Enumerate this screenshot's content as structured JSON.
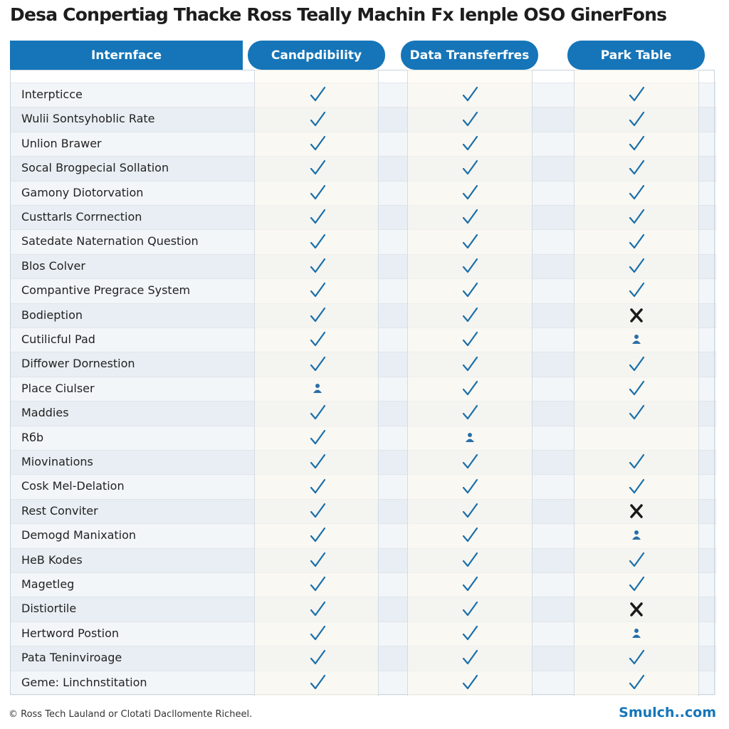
{
  "title": "Desa Conpertiag Thacke Ross Teally Machin Fx Ienple OSO GinerFons",
  "table": {
    "headers": [
      "Internface",
      "Candpdibility",
      "Data Transferfres",
      "Park Table"
    ],
    "rows": [
      {
        "label": "Interpticce",
        "cells": [
          "check",
          "check",
          "check"
        ]
      },
      {
        "label": "Wulii Sontsyhoblic Rate",
        "cells": [
          "check",
          "check",
          "check"
        ]
      },
      {
        "label": "Unlion Brawer",
        "cells": [
          "check",
          "check",
          "check"
        ]
      },
      {
        "label": "Socal Brogpecial Sollation",
        "cells": [
          "check",
          "check",
          "check"
        ]
      },
      {
        "label": "Gamony Diotorvation",
        "cells": [
          "check",
          "check",
          "check"
        ]
      },
      {
        "label": "Custtarls Corrnection",
        "cells": [
          "check",
          "check",
          "check"
        ]
      },
      {
        "label": "Satedate Naternation Question",
        "cells": [
          "check",
          "check",
          "check"
        ]
      },
      {
        "label": "Blos Colver",
        "cells": [
          "check",
          "check",
          "check"
        ]
      },
      {
        "label": "Compantive Pregrace System",
        "cells": [
          "check",
          "check",
          "check"
        ]
      },
      {
        "label": "Bodieption",
        "cells": [
          "check",
          "check",
          "cross"
        ]
      },
      {
        "label": "Cutilicful Pad",
        "cells": [
          "check",
          "check",
          "icon"
        ]
      },
      {
        "label": "Diffower Dornestion",
        "cells": [
          "check",
          "check",
          "check"
        ]
      },
      {
        "label": "Place Ciulser",
        "cells": [
          "icon",
          "check",
          "check"
        ]
      },
      {
        "label": "Maddies",
        "cells": [
          "check",
          "check",
          "check"
        ]
      },
      {
        "label": "Rбb",
        "cells": [
          "check",
          "icon",
          null
        ]
      },
      {
        "label": "Miovinations",
        "cells": [
          "check",
          "check",
          "check"
        ]
      },
      {
        "label": "Cosk Mel-Delation",
        "cells": [
          "check",
          "check",
          "check"
        ]
      },
      {
        "label": "Rest Conviter",
        "cells": [
          "check",
          "check",
          "cross"
        ]
      },
      {
        "label": "Demogd Manixation",
        "cells": [
          "check",
          "check",
          "icon"
        ]
      },
      {
        "label": "HeB Kodes",
        "cells": [
          "check",
          "check",
          "check"
        ]
      },
      {
        "label": "Magetleg",
        "cells": [
          "check",
          "check",
          "check"
        ]
      },
      {
        "label": "Distiortile",
        "cells": [
          "check",
          "check",
          "cross"
        ]
      },
      {
        "label": "Hertword Postion",
        "cells": [
          "check",
          "check",
          "icon"
        ]
      },
      {
        "label": "Pata Teninviroage",
        "cells": [
          "check",
          "check",
          "check"
        ]
      },
      {
        "label": "Geme: Linchnstitation",
        "cells": [
          "check",
          "check",
          "check"
        ]
      }
    ]
  },
  "footer": {
    "left": "© Ross Tech Lauland or Clotati Dacllomente Richeel.",
    "right": "Smulch..com"
  }
}
